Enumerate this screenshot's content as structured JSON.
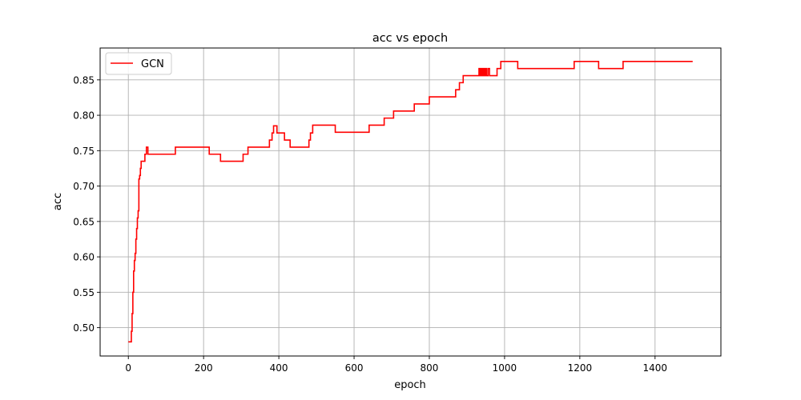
{
  "chart_data": {
    "type": "line",
    "title": "acc vs epoch",
    "xlabel": "epoch",
    "ylabel": "acc",
    "xlim": [
      -75,
      1575
    ],
    "ylim": [
      0.46,
      0.895
    ],
    "xticks": [
      0,
      200,
      400,
      600,
      800,
      1000,
      1200,
      1400
    ],
    "xtick_labels": [
      "0",
      "200",
      "400",
      "600",
      "800",
      "1000",
      "1200",
      "1400"
    ],
    "yticks": [
      0.5,
      0.55,
      0.6,
      0.65,
      0.7,
      0.75,
      0.8,
      0.85
    ],
    "ytick_labels": [
      "0.50",
      "0.55",
      "0.60",
      "0.65",
      "0.70",
      "0.75",
      "0.80",
      "0.85"
    ],
    "grid": true,
    "legend_position": "top-left",
    "series": [
      {
        "name": "GCN",
        "color": "#ff0000",
        "step": true,
        "x": [
          0,
          5,
          8,
          10,
          12,
          14,
          16,
          18,
          20,
          22,
          24,
          26,
          28,
          30,
          32,
          34,
          36,
          38,
          40,
          44,
          48,
          50,
          52,
          54,
          60,
          125,
          215,
          245,
          305,
          318,
          375,
          382,
          386,
          390,
          395,
          415,
          430,
          480,
          484,
          490,
          550,
          640,
          680,
          705,
          760,
          800,
          870,
          880,
          890,
          905,
          932,
          934,
          937,
          940,
          943,
          946,
          949,
          952,
          956,
          960,
          963,
          980,
          990,
          1000,
          1020,
          1035,
          1050,
          1185,
          1250,
          1315,
          1500
        ],
        "y": [
          0.48,
          0.48,
          0.495,
          0.52,
          0.55,
          0.58,
          0.595,
          0.605,
          0.625,
          0.64,
          0.655,
          0.665,
          0.71,
          0.715,
          0.725,
          0.735,
          0.735,
          0.735,
          0.735,
          0.745,
          0.755,
          0.755,
          0.745,
          0.745,
          0.745,
          0.755,
          0.745,
          0.735,
          0.745,
          0.755,
          0.765,
          0.775,
          0.785,
          0.785,
          0.775,
          0.765,
          0.755,
          0.765,
          0.775,
          0.786,
          0.776,
          0.786,
          0.796,
          0.806,
          0.816,
          0.826,
          0.836,
          0.846,
          0.856,
          0.856,
          0.866,
          0.856,
          0.866,
          0.856,
          0.866,
          0.856,
          0.866,
          0.856,
          0.866,
          0.856,
          0.856,
          0.866,
          0.876,
          0.876,
          0.876,
          0.866,
          0.866,
          0.876,
          0.866,
          0.876,
          0.876
        ]
      }
    ]
  }
}
